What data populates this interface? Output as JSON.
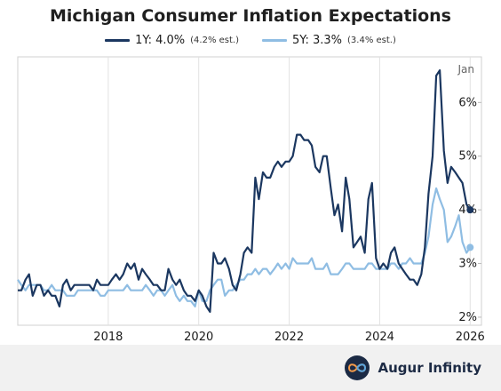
{
  "title": "Michigan Consumer Inflation Expectations",
  "legend": {
    "s1_label": "1Y: 4.0%",
    "s1_note": "(4.2% est.)",
    "s2_label": "5Y: 3.3%",
    "s2_note": "(3.4% est.)"
  },
  "brand": {
    "name": "Augur Infinity",
    "icon": "infinity-icon"
  },
  "chart_data": {
    "type": "line",
    "annotation": "Jan",
    "xlim": [
      2016.0,
      2026.25
    ],
    "ylim": [
      1.85,
      6.85
    ],
    "x_ticks": [
      2018,
      2020,
      2022,
      2024,
      2026
    ],
    "x_tick_labels": [
      "2018",
      "2020",
      "2022",
      "2024",
      "2026"
    ],
    "y_ticks": [
      2,
      3,
      4,
      5,
      6
    ],
    "y_tick_labels": [
      "2%",
      "3%",
      "4%",
      "5%",
      "6%"
    ],
    "grid": "vertical",
    "legend_position": "top-center",
    "series": [
      {
        "name": "1Y",
        "color": "#1b3760",
        "end_marker": true,
        "x": [
          2016.0,
          2016.08,
          2016.17,
          2016.25,
          2016.33,
          2016.42,
          2016.5,
          2016.58,
          2016.67,
          2016.75,
          2016.83,
          2016.92,
          2017.0,
          2017.08,
          2017.17,
          2017.25,
          2017.33,
          2017.42,
          2017.5,
          2017.58,
          2017.67,
          2017.75,
          2017.83,
          2017.92,
          2018.0,
          2018.08,
          2018.17,
          2018.25,
          2018.33,
          2018.42,
          2018.5,
          2018.58,
          2018.67,
          2018.75,
          2018.83,
          2018.92,
          2019.0,
          2019.08,
          2019.17,
          2019.25,
          2019.33,
          2019.42,
          2019.5,
          2019.58,
          2019.67,
          2019.75,
          2019.83,
          2019.92,
          2020.0,
          2020.08,
          2020.17,
          2020.25,
          2020.33,
          2020.42,
          2020.5,
          2020.58,
          2020.67,
          2020.75,
          2020.83,
          2020.92,
          2021.0,
          2021.08,
          2021.17,
          2021.25,
          2021.33,
          2021.42,
          2021.5,
          2021.58,
          2021.67,
          2021.75,
          2021.83,
          2021.92,
          2022.0,
          2022.08,
          2022.17,
          2022.25,
          2022.33,
          2022.42,
          2022.5,
          2022.58,
          2022.67,
          2022.75,
          2022.83,
          2022.92,
          2023.0,
          2023.08,
          2023.17,
          2023.25,
          2023.33,
          2023.42,
          2023.5,
          2023.58,
          2023.67,
          2023.75,
          2023.83,
          2023.92,
          2024.0,
          2024.08,
          2024.17,
          2024.25,
          2024.33,
          2024.42,
          2024.5,
          2024.58,
          2024.67,
          2024.75,
          2024.83,
          2024.92,
          2025.0,
          2025.08,
          2025.17,
          2025.25,
          2025.33,
          2025.42,
          2025.5,
          2025.58,
          2025.67,
          2025.75,
          2025.83,
          2025.92,
          2026.0
        ],
        "values": [
          2.5,
          2.5,
          2.7,
          2.8,
          2.4,
          2.6,
          2.6,
          2.4,
          2.5,
          2.4,
          2.4,
          2.2,
          2.6,
          2.7,
          2.5,
          2.6,
          2.6,
          2.6,
          2.6,
          2.6,
          2.5,
          2.7,
          2.6,
          2.6,
          2.6,
          2.7,
          2.8,
          2.7,
          2.8,
          3.0,
          2.9,
          3.0,
          2.7,
          2.9,
          2.8,
          2.7,
          2.6,
          2.6,
          2.5,
          2.5,
          2.9,
          2.7,
          2.6,
          2.7,
          2.5,
          2.4,
          2.4,
          2.3,
          2.5,
          2.4,
          2.2,
          2.1,
          3.2,
          3.0,
          3.0,
          3.1,
          2.9,
          2.6,
          2.5,
          2.8,
          3.2,
          3.3,
          3.2,
          4.6,
          4.2,
          4.7,
          4.6,
          4.6,
          4.8,
          4.9,
          4.8,
          4.9,
          4.9,
          5.0,
          5.4,
          5.4,
          5.3,
          5.3,
          5.2,
          4.8,
          4.7,
          5.0,
          5.0,
          4.4,
          3.9,
          4.1,
          3.6,
          4.6,
          4.2,
          3.3,
          3.4,
          3.5,
          3.2,
          4.2,
          4.5,
          3.1,
          2.9,
          3.0,
          2.9,
          3.2,
          3.3,
          3.0,
          2.9,
          2.8,
          2.7,
          2.7,
          2.6,
          2.8,
          3.3,
          4.3,
          5.0,
          6.5,
          6.6,
          5.1,
          4.5,
          4.8,
          4.7,
          4.6,
          4.5,
          4.1,
          4.0
        ]
      },
      {
        "name": "5Y",
        "color": "#8fbde3",
        "end_marker": true,
        "x": [
          2016.0,
          2016.08,
          2016.17,
          2016.25,
          2016.33,
          2016.42,
          2016.5,
          2016.58,
          2016.67,
          2016.75,
          2016.83,
          2016.92,
          2017.0,
          2017.08,
          2017.17,
          2017.25,
          2017.33,
          2017.42,
          2017.5,
          2017.58,
          2017.67,
          2017.75,
          2017.83,
          2017.92,
          2018.0,
          2018.08,
          2018.17,
          2018.25,
          2018.33,
          2018.42,
          2018.5,
          2018.58,
          2018.67,
          2018.75,
          2018.83,
          2018.92,
          2019.0,
          2019.08,
          2019.17,
          2019.25,
          2019.33,
          2019.42,
          2019.5,
          2019.58,
          2019.67,
          2019.75,
          2019.83,
          2019.92,
          2020.0,
          2020.08,
          2020.17,
          2020.25,
          2020.33,
          2020.42,
          2020.5,
          2020.58,
          2020.67,
          2020.75,
          2020.83,
          2020.92,
          2021.0,
          2021.08,
          2021.17,
          2021.25,
          2021.33,
          2021.42,
          2021.5,
          2021.58,
          2021.67,
          2021.75,
          2021.83,
          2021.92,
          2022.0,
          2022.08,
          2022.17,
          2022.25,
          2022.33,
          2022.42,
          2022.5,
          2022.58,
          2022.67,
          2022.75,
          2022.83,
          2022.92,
          2023.0,
          2023.08,
          2023.17,
          2023.25,
          2023.33,
          2023.42,
          2023.5,
          2023.58,
          2023.67,
          2023.75,
          2023.83,
          2023.92,
          2024.0,
          2024.08,
          2024.17,
          2024.25,
          2024.33,
          2024.42,
          2024.5,
          2024.58,
          2024.67,
          2024.75,
          2024.83,
          2024.92,
          2025.0,
          2025.08,
          2025.17,
          2025.25,
          2025.33,
          2025.42,
          2025.5,
          2025.58,
          2025.67,
          2025.75,
          2025.83,
          2025.92,
          2026.0
        ],
        "values": [
          2.7,
          2.6,
          2.5,
          2.6,
          2.6,
          2.6,
          2.6,
          2.5,
          2.5,
          2.6,
          2.5,
          2.5,
          2.5,
          2.4,
          2.4,
          2.4,
          2.5,
          2.5,
          2.5,
          2.5,
          2.5,
          2.5,
          2.4,
          2.4,
          2.5,
          2.5,
          2.5,
          2.5,
          2.5,
          2.6,
          2.5,
          2.5,
          2.5,
          2.5,
          2.6,
          2.5,
          2.4,
          2.5,
          2.5,
          2.4,
          2.5,
          2.6,
          2.4,
          2.3,
          2.4,
          2.3,
          2.3,
          2.2,
          2.5,
          2.3,
          2.3,
          2.5,
          2.6,
          2.7,
          2.7,
          2.4,
          2.5,
          2.5,
          2.6,
          2.7,
          2.7,
          2.8,
          2.8,
          2.9,
          2.8,
          2.9,
          2.9,
          2.8,
          2.9,
          3.0,
          2.9,
          3.0,
          2.9,
          3.1,
          3.0,
          3.0,
          3.0,
          3.0,
          3.1,
          2.9,
          2.9,
          2.9,
          3.0,
          2.8,
          2.8,
          2.8,
          2.9,
          3.0,
          3.0,
          2.9,
          2.9,
          2.9,
          2.9,
          3.0,
          3.0,
          2.9,
          2.9,
          2.9,
          2.9,
          3.0,
          3.0,
          2.9,
          3.0,
          3.0,
          3.1,
          3.0,
          3.0,
          3.0,
          3.2,
          3.5,
          4.1,
          4.4,
          4.2,
          4.0,
          3.4,
          3.5,
          3.7,
          3.9,
          3.4,
          3.2,
          3.3
        ]
      }
    ]
  }
}
